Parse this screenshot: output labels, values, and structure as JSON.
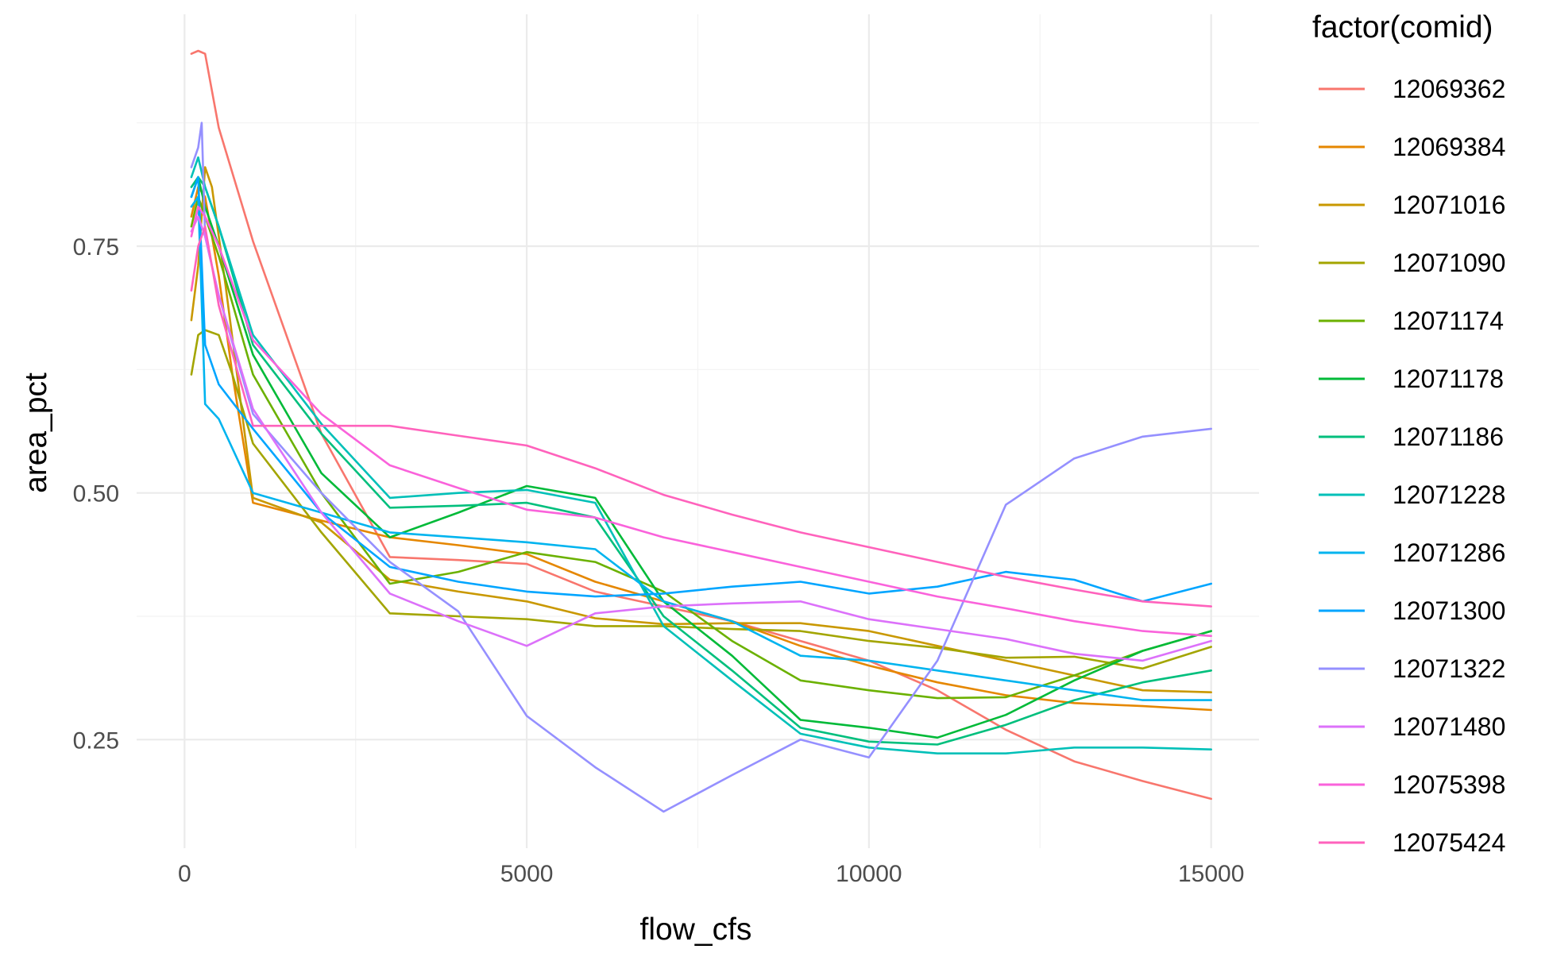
{
  "chart_data": {
    "type": "line",
    "title": "",
    "xlabel": "flow_cfs",
    "ylabel": "area_pct",
    "xlim": [
      -700,
      15700
    ],
    "ylim": [
      0.14,
      0.985
    ],
    "x_major_ticks": [
      0,
      5000,
      10000,
      15000
    ],
    "x_tick_labels": [
      "0",
      "5000",
      "10000",
      "15000"
    ],
    "x_minor_ticks": [
      2500,
      7500,
      12500
    ],
    "y_major_ticks": [
      0.25,
      0.5,
      0.75
    ],
    "y_tick_labels": [
      "0.25",
      "0.50",
      "0.75"
    ],
    "y_minor_ticks": [
      0.375,
      0.625,
      0.875
    ],
    "grid": true,
    "legend_title": "factor(comid)",
    "legend_position": "right",
    "series": [
      {
        "name": "12069362",
        "color": "#F8766D",
        "points": [
          [
            100,
            0.945
          ],
          [
            200,
            0.948
          ],
          [
            300,
            0.945
          ],
          [
            500,
            0.87
          ],
          [
            1000,
            0.755
          ],
          [
            2000,
            0.56
          ],
          [
            3000,
            0.435
          ],
          [
            4000,
            0.432
          ],
          [
            5000,
            0.428
          ],
          [
            6000,
            0.4
          ],
          [
            7000,
            0.385
          ],
          [
            8000,
            0.37
          ],
          [
            9000,
            0.35
          ],
          [
            10000,
            0.33
          ],
          [
            11000,
            0.3
          ],
          [
            12000,
            0.26
          ],
          [
            13000,
            0.228
          ],
          [
            14000,
            0.208
          ],
          [
            15000,
            0.19
          ]
        ]
      },
      {
        "name": "12069384",
        "color": "#E58700",
        "points": [
          [
            100,
            0.78
          ],
          [
            200,
            0.81
          ],
          [
            300,
            0.8
          ],
          [
            500,
            0.72
          ],
          [
            700,
            0.62
          ],
          [
            1000,
            0.49
          ],
          [
            2000,
            0.472
          ],
          [
            3000,
            0.455
          ],
          [
            4000,
            0.447
          ],
          [
            5000,
            0.438
          ],
          [
            6000,
            0.41
          ],
          [
            7000,
            0.39
          ],
          [
            8000,
            0.37
          ],
          [
            9000,
            0.345
          ],
          [
            10000,
            0.325
          ],
          [
            11000,
            0.308
          ],
          [
            12000,
            0.295
          ],
          [
            13000,
            0.287
          ],
          [
            14000,
            0.284
          ],
          [
            15000,
            0.28
          ]
        ]
      },
      {
        "name": "12071016",
        "color": "#C99800",
        "points": [
          [
            100,
            0.675
          ],
          [
            200,
            0.73
          ],
          [
            300,
            0.83
          ],
          [
            400,
            0.81
          ],
          [
            600,
            0.71
          ],
          [
            1000,
            0.495
          ],
          [
            2000,
            0.47
          ],
          [
            3000,
            0.412
          ],
          [
            4000,
            0.4
          ],
          [
            5000,
            0.39
          ],
          [
            6000,
            0.373
          ],
          [
            7000,
            0.367
          ],
          [
            8000,
            0.368
          ],
          [
            9000,
            0.368
          ],
          [
            10000,
            0.36
          ],
          [
            11000,
            0.345
          ],
          [
            12000,
            0.33
          ],
          [
            13000,
            0.315
          ],
          [
            14000,
            0.3
          ],
          [
            15000,
            0.298
          ]
        ]
      },
      {
        "name": "12071090",
        "color": "#A3A500",
        "points": [
          [
            100,
            0.62
          ],
          [
            200,
            0.66
          ],
          [
            300,
            0.665
          ],
          [
            500,
            0.66
          ],
          [
            700,
            0.62
          ],
          [
            1000,
            0.55
          ],
          [
            2000,
            0.46
          ],
          [
            3000,
            0.378
          ],
          [
            4000,
            0.375
          ],
          [
            5000,
            0.372
          ],
          [
            6000,
            0.365
          ],
          [
            7000,
            0.365
          ],
          [
            8000,
            0.362
          ],
          [
            9000,
            0.36
          ],
          [
            10000,
            0.35
          ],
          [
            11000,
            0.343
          ],
          [
            12000,
            0.333
          ],
          [
            13000,
            0.334
          ],
          [
            14000,
            0.322
          ],
          [
            15000,
            0.344
          ]
        ]
      },
      {
        "name": "12071174",
        "color": "#6BB100",
        "points": [
          [
            100,
            0.77
          ],
          [
            200,
            0.8
          ],
          [
            300,
            0.78
          ],
          [
            500,
            0.74
          ],
          [
            1000,
            0.62
          ],
          [
            2000,
            0.5
          ],
          [
            3000,
            0.408
          ],
          [
            4000,
            0.42
          ],
          [
            5000,
            0.44
          ],
          [
            6000,
            0.43
          ],
          [
            7000,
            0.4
          ],
          [
            8000,
            0.35
          ],
          [
            9000,
            0.31
          ],
          [
            10000,
            0.3
          ],
          [
            11000,
            0.292
          ],
          [
            12000,
            0.293
          ],
          [
            13000,
            0.315
          ],
          [
            14000,
            0.34
          ],
          [
            15000,
            0.36
          ]
        ]
      },
      {
        "name": "12071178",
        "color": "#00BA38",
        "points": [
          [
            100,
            0.8
          ],
          [
            200,
            0.82
          ],
          [
            300,
            0.79
          ],
          [
            500,
            0.75
          ],
          [
            1000,
            0.64
          ],
          [
            2000,
            0.52
          ],
          [
            3000,
            0.455
          ],
          [
            4000,
            0.48
          ],
          [
            5000,
            0.507
          ],
          [
            6000,
            0.495
          ],
          [
            7000,
            0.39
          ],
          [
            8000,
            0.335
          ],
          [
            9000,
            0.27
          ],
          [
            10000,
            0.262
          ],
          [
            11000,
            0.252
          ],
          [
            12000,
            0.275
          ],
          [
            13000,
            0.31
          ],
          [
            14000,
            0.34
          ],
          [
            15000,
            0.36
          ]
        ]
      },
      {
        "name": "12071186",
        "color": "#00BF7D",
        "points": [
          [
            100,
            0.81
          ],
          [
            200,
            0.82
          ],
          [
            300,
            0.81
          ],
          [
            500,
            0.77
          ],
          [
            1000,
            0.65
          ],
          [
            2000,
            0.56
          ],
          [
            3000,
            0.485
          ],
          [
            4000,
            0.487
          ],
          [
            5000,
            0.49
          ],
          [
            6000,
            0.475
          ],
          [
            7000,
            0.375
          ],
          [
            8000,
            0.32
          ],
          [
            9000,
            0.262
          ],
          [
            10000,
            0.248
          ],
          [
            11000,
            0.245
          ],
          [
            12000,
            0.265
          ],
          [
            13000,
            0.29
          ],
          [
            14000,
            0.308
          ],
          [
            15000,
            0.32
          ]
        ]
      },
      {
        "name": "12071228",
        "color": "#00C0B8",
        "points": [
          [
            100,
            0.82
          ],
          [
            200,
            0.84
          ],
          [
            300,
            0.81
          ],
          [
            500,
            0.77
          ],
          [
            1000,
            0.66
          ],
          [
            2000,
            0.57
          ],
          [
            3000,
            0.495
          ],
          [
            4000,
            0.5
          ],
          [
            5000,
            0.503
          ],
          [
            6000,
            0.49
          ],
          [
            7000,
            0.365
          ],
          [
            8000,
            0.31
          ],
          [
            9000,
            0.256
          ],
          [
            10000,
            0.242
          ],
          [
            11000,
            0.236
          ],
          [
            12000,
            0.236
          ],
          [
            13000,
            0.242
          ],
          [
            14000,
            0.242
          ],
          [
            15000,
            0.24
          ]
        ]
      },
      {
        "name": "12071286",
        "color": "#00B4EF",
        "points": [
          [
            100,
            0.79
          ],
          [
            200,
            0.8
          ],
          [
            300,
            0.59
          ],
          [
            500,
            0.575
          ],
          [
            1000,
            0.5
          ],
          [
            2000,
            0.48
          ],
          [
            3000,
            0.46
          ],
          [
            4000,
            0.455
          ],
          [
            5000,
            0.45
          ],
          [
            6000,
            0.443
          ],
          [
            7000,
            0.39
          ],
          [
            8000,
            0.37
          ],
          [
            9000,
            0.335
          ],
          [
            10000,
            0.33
          ],
          [
            11000,
            0.32
          ],
          [
            12000,
            0.31
          ],
          [
            13000,
            0.3
          ],
          [
            14000,
            0.29
          ],
          [
            15000,
            0.29
          ]
        ]
      },
      {
        "name": "12071300",
        "color": "#00A5FF",
        "points": [
          [
            100,
            0.8
          ],
          [
            200,
            0.82
          ],
          [
            300,
            0.65
          ],
          [
            500,
            0.61
          ],
          [
            1000,
            0.565
          ],
          [
            2000,
            0.48
          ],
          [
            3000,
            0.425
          ],
          [
            4000,
            0.41
          ],
          [
            5000,
            0.4
          ],
          [
            6000,
            0.395
          ],
          [
            7000,
            0.398
          ],
          [
            8000,
            0.405
          ],
          [
            9000,
            0.41
          ],
          [
            10000,
            0.398
          ],
          [
            11000,
            0.405
          ],
          [
            12000,
            0.42
          ],
          [
            13000,
            0.412
          ],
          [
            14000,
            0.39
          ],
          [
            15000,
            0.408
          ]
        ]
      },
      {
        "name": "12071322",
        "color": "#9590FF",
        "points": [
          [
            100,
            0.83
          ],
          [
            200,
            0.85
          ],
          [
            250,
            0.875
          ],
          [
            300,
            0.76
          ],
          [
            500,
            0.7
          ],
          [
            1000,
            0.58
          ],
          [
            2000,
            0.5
          ],
          [
            3000,
            0.43
          ],
          [
            4000,
            0.38
          ],
          [
            5000,
            0.274
          ],
          [
            6000,
            0.222
          ],
          [
            7000,
            0.177
          ],
          [
            8000,
            0.214
          ],
          [
            9000,
            0.25
          ],
          [
            10000,
            0.232
          ],
          [
            11000,
            0.33
          ],
          [
            12000,
            0.488
          ],
          [
            13000,
            0.535
          ],
          [
            14000,
            0.557
          ],
          [
            15000,
            0.565
          ]
        ]
      },
      {
        "name": "12071480",
        "color": "#DC71FA",
        "points": [
          [
            100,
            0.765
          ],
          [
            200,
            0.78
          ],
          [
            300,
            0.76
          ],
          [
            500,
            0.7
          ],
          [
            1000,
            0.585
          ],
          [
            2000,
            0.48
          ],
          [
            3000,
            0.398
          ],
          [
            4000,
            0.37
          ],
          [
            5000,
            0.345
          ],
          [
            6000,
            0.378
          ],
          [
            7000,
            0.385
          ],
          [
            8000,
            0.388
          ],
          [
            9000,
            0.39
          ],
          [
            10000,
            0.372
          ],
          [
            11000,
            0.362
          ],
          [
            12000,
            0.352
          ],
          [
            13000,
            0.337
          ],
          [
            14000,
            0.33
          ],
          [
            15000,
            0.35
          ]
        ]
      },
      {
        "name": "12075398",
        "color": "#FA62DB",
        "points": [
          [
            100,
            0.76
          ],
          [
            200,
            0.79
          ],
          [
            300,
            0.78
          ],
          [
            500,
            0.75
          ],
          [
            1000,
            0.655
          ],
          [
            2000,
            0.58
          ],
          [
            3000,
            0.528
          ],
          [
            4000,
            0.505
          ],
          [
            5000,
            0.483
          ],
          [
            6000,
            0.475
          ],
          [
            7000,
            0.455
          ],
          [
            8000,
            0.44
          ],
          [
            9000,
            0.425
          ],
          [
            10000,
            0.41
          ],
          [
            11000,
            0.395
          ],
          [
            12000,
            0.383
          ],
          [
            13000,
            0.37
          ],
          [
            14000,
            0.36
          ],
          [
            15000,
            0.355
          ]
        ]
      },
      {
        "name": "12075424",
        "color": "#FF62BC",
        "points": [
          [
            100,
            0.705
          ],
          [
            200,
            0.75
          ],
          [
            300,
            0.77
          ],
          [
            500,
            0.69
          ],
          [
            1000,
            0.568
          ],
          [
            2000,
            0.568
          ],
          [
            3000,
            0.568
          ],
          [
            4000,
            0.558
          ],
          [
            5000,
            0.548
          ],
          [
            6000,
            0.525
          ],
          [
            7000,
            0.498
          ],
          [
            8000,
            0.478
          ],
          [
            9000,
            0.46
          ],
          [
            10000,
            0.445
          ],
          [
            11000,
            0.43
          ],
          [
            12000,
            0.415
          ],
          [
            13000,
            0.402
          ],
          [
            14000,
            0.39
          ],
          [
            15000,
            0.385
          ]
        ]
      }
    ]
  }
}
